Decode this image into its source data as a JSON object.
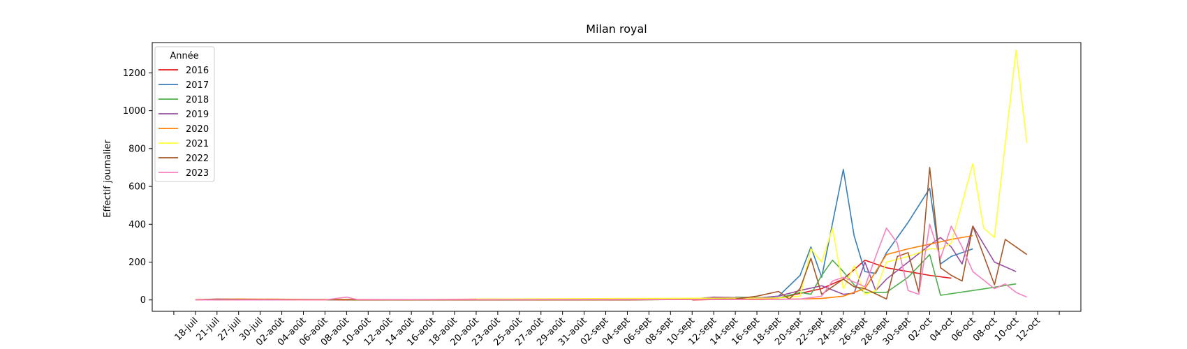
{
  "chart_data": {
    "type": "line",
    "title": "Milan royal",
    "xlabel": "",
    "ylabel": "Effectif journalier",
    "ylim": [
      -60,
      1360
    ],
    "yticks": [
      0,
      200,
      400,
      600,
      800,
      1000,
      1200
    ],
    "x_categories": [
      "18-juil",
      "21-juil",
      "27-juil",
      "30-juil",
      "02-août",
      "04-août",
      "06-août",
      "08-août",
      "10-août",
      "12-août",
      "14-août",
      "16-août",
      "18-août",
      "20-août",
      "23-août",
      "25-août",
      "27-août",
      "29-août",
      "31-août",
      "02-sept",
      "04-sept",
      "06-sept",
      "08-sept",
      "10-sept",
      "12-sept",
      "14-sept",
      "16-sept",
      "18-sept",
      "20-sept",
      "22-sept",
      "24-sept",
      "26-sept",
      "28-sept",
      "30-sept",
      "02-oct",
      "04-oct",
      "06-oct",
      "08-oct",
      "10-oct",
      "12-oct"
    ],
    "xlim": [
      -2,
      41
    ],
    "grid": false,
    "legend": {
      "title": "Année",
      "placement": "top-left"
    },
    "series": [
      {
        "name": "2016",
        "color": "#e41a1c",
        "points": [
          [
            23,
            0
          ],
          [
            27,
            10
          ],
          [
            29,
            60
          ],
          [
            30,
            110
          ],
          [
            31,
            210
          ],
          [
            32,
            170
          ],
          [
            33,
            150
          ],
          [
            34,
            130
          ],
          [
            35,
            115
          ]
        ]
      },
      {
        "name": "2017",
        "color": "#377eb8",
        "points": [
          [
            24,
            5
          ],
          [
            26,
            10
          ],
          [
            27,
            20
          ],
          [
            28,
            130
          ],
          [
            28.5,
            280
          ],
          [
            29,
            120
          ],
          [
            30,
            690
          ],
          [
            30.5,
            340
          ],
          [
            31,
            150
          ],
          [
            31.5,
            140
          ],
          [
            32,
            250
          ],
          [
            33,
            410
          ],
          [
            34,
            590
          ],
          [
            34.5,
            190
          ],
          [
            35,
            230
          ],
          [
            36,
            270
          ]
        ]
      },
      {
        "name": "2018",
        "color": "#4daf4a",
        "points": [
          [
            25,
            15
          ],
          [
            27,
            10
          ],
          [
            28,
            40
          ],
          [
            28.5,
            30
          ],
          [
            29,
            130
          ],
          [
            29.5,
            210
          ],
          [
            30,
            150
          ],
          [
            30.5,
            80
          ],
          [
            31,
            40
          ],
          [
            32,
            40
          ],
          [
            33,
            120
          ],
          [
            34,
            240
          ],
          [
            34.5,
            25
          ],
          [
            36,
            50
          ],
          [
            38,
            85
          ]
        ]
      },
      {
        "name": "2019",
        "color": "#984ea3",
        "points": [
          [
            20,
            0
          ],
          [
            23,
            5
          ],
          [
            24,
            15
          ],
          [
            26,
            10
          ],
          [
            27,
            20
          ],
          [
            28,
            50
          ],
          [
            29,
            75
          ],
          [
            30,
            30
          ],
          [
            30.5,
            35
          ],
          [
            31,
            200
          ],
          [
            31.5,
            50
          ],
          [
            32,
            110
          ],
          [
            33,
            200
          ],
          [
            34,
            290
          ],
          [
            34.5,
            330
          ],
          [
            35,
            280
          ],
          [
            35.5,
            190
          ],
          [
            36,
            390
          ],
          [
            37,
            200
          ],
          [
            38,
            150
          ]
        ]
      },
      {
        "name": "2020",
        "color": "#ff7f00",
        "points": [
          [
            0,
            2
          ],
          [
            2,
            5
          ],
          [
            5,
            3
          ],
          [
            10,
            2
          ],
          [
            14,
            5
          ],
          [
            20,
            3
          ],
          [
            26,
            2
          ],
          [
            28,
            5
          ],
          [
            29,
            8
          ],
          [
            30,
            20
          ],
          [
            31,
            60
          ],
          [
            32,
            240
          ],
          [
            33,
            270
          ],
          [
            34,
            295
          ],
          [
            35,
            320
          ],
          [
            36,
            340
          ]
        ]
      },
      {
        "name": "2021",
        "color": "#ffff33",
        "points": [
          [
            13,
            5
          ],
          [
            27,
            10
          ],
          [
            28,
            20
          ],
          [
            28.5,
            270
          ],
          [
            29,
            200
          ],
          [
            29.5,
            380
          ],
          [
            30,
            60
          ],
          [
            30.5,
            180
          ],
          [
            31,
            30
          ],
          [
            31.5,
            50
          ],
          [
            32,
            200
          ],
          [
            33,
            230
          ],
          [
            34,
            270
          ],
          [
            34.5,
            270
          ],
          [
            35,
            300
          ],
          [
            36,
            720
          ],
          [
            36.5,
            380
          ],
          [
            37,
            330
          ],
          [
            38,
            1320
          ],
          [
            38.5,
            830
          ]
        ]
      },
      {
        "name": "2022",
        "color": "#a65628",
        "points": [
          [
            0,
            0
          ],
          [
            1,
            5
          ],
          [
            2,
            3
          ],
          [
            3,
            2
          ],
          [
            7,
            0
          ],
          [
            10,
            0
          ],
          [
            15,
            0
          ],
          [
            20,
            0
          ],
          [
            25,
            5
          ],
          [
            26,
            20
          ],
          [
            27,
            45
          ],
          [
            27.5,
            5
          ],
          [
            28,
            60
          ],
          [
            28.5,
            220
          ],
          [
            29,
            30
          ],
          [
            30,
            110
          ],
          [
            30.5,
            70
          ],
          [
            31,
            60
          ],
          [
            32,
            5
          ],
          [
            32.5,
            230
          ],
          [
            33,
            250
          ],
          [
            33.5,
            40
          ],
          [
            34,
            700
          ],
          [
            34.5,
            170
          ],
          [
            35,
            130
          ],
          [
            35.5,
            100
          ],
          [
            36,
            390
          ],
          [
            37,
            80
          ],
          [
            37.5,
            320
          ],
          [
            38,
            280
          ],
          [
            38.5,
            240
          ]
        ]
      },
      {
        "name": "2023",
        "color": "#f781bf",
        "points": [
          [
            0,
            0
          ],
          [
            6,
            0
          ],
          [
            7,
            15
          ],
          [
            7.5,
            2
          ],
          [
            10,
            2
          ],
          [
            20,
            3
          ],
          [
            25,
            2
          ],
          [
            26,
            5
          ],
          [
            27,
            3
          ],
          [
            28,
            5
          ],
          [
            29,
            20
          ],
          [
            29.5,
            100
          ],
          [
            30,
            120
          ],
          [
            31,
            70
          ],
          [
            31.5,
            230
          ],
          [
            32,
            380
          ],
          [
            32.5,
            300
          ],
          [
            33,
            50
          ],
          [
            33.5,
            30
          ],
          [
            34,
            400
          ],
          [
            34.5,
            220
          ],
          [
            35,
            390
          ],
          [
            35.5,
            280
          ],
          [
            36,
            150
          ],
          [
            37,
            60
          ],
          [
            37.5,
            85
          ],
          [
            38,
            40
          ],
          [
            38.5,
            15
          ]
        ]
      }
    ]
  }
}
